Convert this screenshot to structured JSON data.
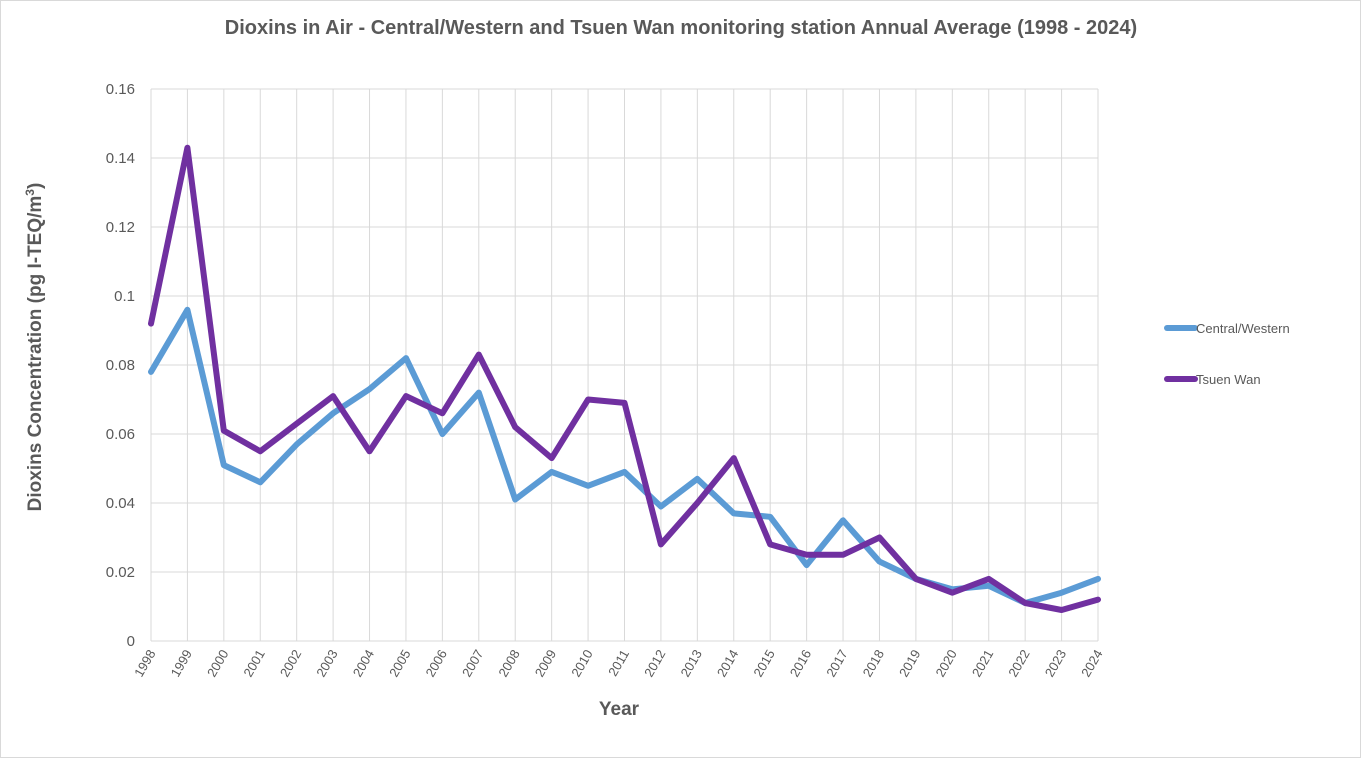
{
  "chart_data": {
    "type": "line",
    "title": "Dioxins in Air - Central/Western and Tsuen Wan monitoring station Annual Average (1998 - 2024)",
    "xlabel": "Year",
    "ylabel_main": "Dioxins Concentration (pg I-TEQ/m",
    "ylabel_sup": "3",
    "ylabel_close": ")",
    "ylim": [
      0,
      0.16
    ],
    "yticks": [
      "0",
      "0.02",
      "0.04",
      "0.06",
      "0.08",
      "0.1",
      "0.12",
      "0.14",
      "0.16"
    ],
    "grid": true,
    "legend_position": "right",
    "categories": [
      "1998",
      "1999",
      "2000",
      "2001",
      "2002",
      "2003",
      "2004",
      "2005",
      "2006",
      "2007",
      "2008",
      "2009",
      "2010",
      "2011",
      "2012",
      "2013",
      "2014",
      "2015",
      "2016",
      "2017",
      "2018",
      "2019",
      "2020",
      "2021",
      "2022",
      "2023",
      "2024"
    ],
    "series": [
      {
        "name": "Central/Western",
        "color": "#5b9bd5",
        "values": [
          0.078,
          0.096,
          0.051,
          0.046,
          0.057,
          0.066,
          0.073,
          0.082,
          0.06,
          0.072,
          0.041,
          0.049,
          0.045,
          0.049,
          0.039,
          0.047,
          0.037,
          0.036,
          0.022,
          0.035,
          0.023,
          0.018,
          0.015,
          0.016,
          0.011,
          0.014,
          0.018
        ]
      },
      {
        "name": "Tsuen Wan",
        "color": "#7030a0",
        "values": [
          0.092,
          0.143,
          0.061,
          0.055,
          0.063,
          0.071,
          0.055,
          0.071,
          0.066,
          0.083,
          0.062,
          0.053,
          0.07,
          0.069,
          0.028,
          0.04,
          0.053,
          0.028,
          0.025,
          0.025,
          0.03,
          0.018,
          0.014,
          0.018,
          0.011,
          0.009,
          0.012
        ]
      }
    ]
  }
}
